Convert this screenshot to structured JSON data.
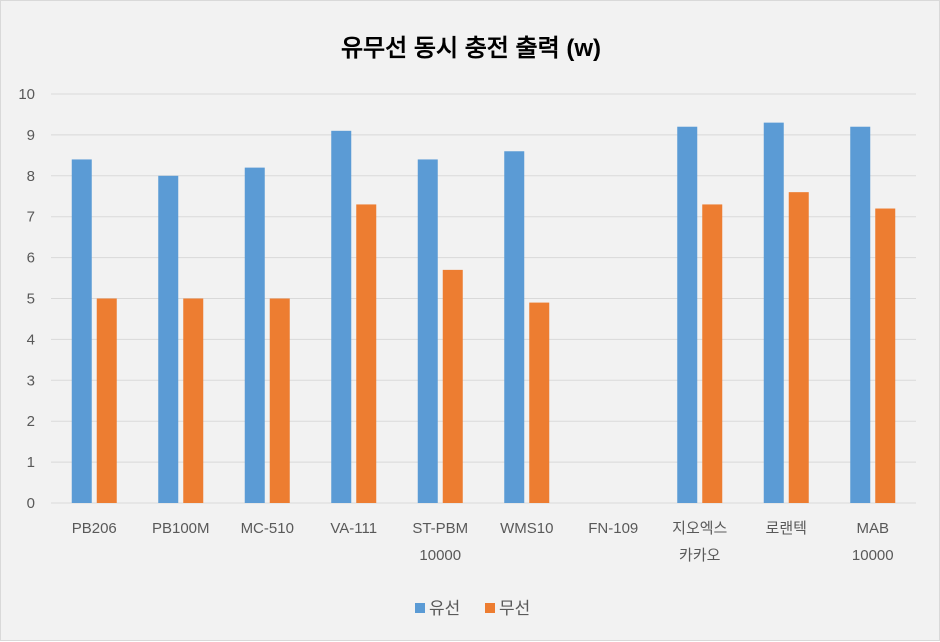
{
  "chart_data": {
    "type": "bar",
    "title": "유무선 동시 충전 출력 (w)",
    "xlabel": "",
    "ylabel": "",
    "ylim": [
      0,
      10
    ],
    "yticks": [
      0,
      1,
      2,
      3,
      4,
      5,
      6,
      7,
      8,
      9,
      10
    ],
    "grid": true,
    "legend_position": "bottom",
    "categories": [
      [
        "PB206"
      ],
      [
        "PB100M"
      ],
      [
        "MC-510"
      ],
      [
        "VA-111"
      ],
      [
        "ST-PBM",
        "10000"
      ],
      [
        "WMS10"
      ],
      [
        "FN-109"
      ],
      [
        "지오엑스",
        "카카오"
      ],
      [
        "로랜텍"
      ],
      [
        "MAB",
        "10000"
      ]
    ],
    "series": [
      {
        "name": "유선",
        "color": "#5B9BD5",
        "values": [
          8.4,
          8.0,
          8.2,
          9.1,
          8.4,
          8.6,
          null,
          9.2,
          9.3,
          9.2
        ]
      },
      {
        "name": "무선",
        "color": "#ED7D31",
        "values": [
          5.0,
          5.0,
          5.0,
          7.3,
          5.7,
          4.9,
          null,
          7.3,
          7.6,
          7.2
        ]
      }
    ]
  }
}
